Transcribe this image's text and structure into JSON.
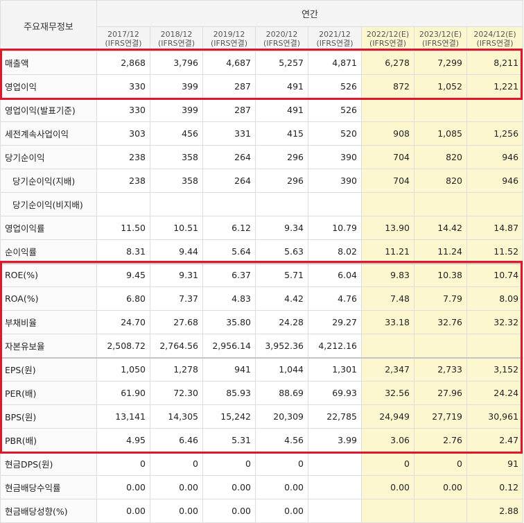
{
  "header": {
    "corner_label": "주요재무정보",
    "period_group": "연간",
    "columns": [
      {
        "year": "2017/12",
        "basis": "(IFRS연결)",
        "estimate": false
      },
      {
        "year": "2018/12",
        "basis": "(IFRS연결)",
        "estimate": false
      },
      {
        "year": "2019/12",
        "basis": "(IFRS연결)",
        "estimate": false
      },
      {
        "year": "2020/12",
        "basis": "(IFRS연결)",
        "estimate": false
      },
      {
        "year": "2021/12",
        "basis": "(IFRS연결)",
        "estimate": false
      },
      {
        "year": "2022/12(E)",
        "basis": "(IFRS연결)",
        "estimate": true
      },
      {
        "year": "2023/12(E)",
        "basis": "(IFRS연결)",
        "estimate": true
      },
      {
        "year": "2024/12(E)",
        "basis": "(IFRS연결)",
        "estimate": true
      }
    ]
  },
  "rows": [
    {
      "label": "매출액",
      "indent": false,
      "values": [
        "2,868",
        "3,796",
        "4,687",
        "5,257",
        "4,871",
        "6,278",
        "7,299",
        "8,211"
      ]
    },
    {
      "label": "영업이익",
      "indent": false,
      "values": [
        "330",
        "399",
        "287",
        "491",
        "526",
        "872",
        "1,052",
        "1,221"
      ]
    },
    {
      "label": "영업이익(발표기준)",
      "indent": false,
      "values": [
        "330",
        "399",
        "287",
        "491",
        "526",
        "",
        "",
        ""
      ]
    },
    {
      "label": "세전계속사업이익",
      "indent": false,
      "values": [
        "303",
        "456",
        "331",
        "415",
        "520",
        "908",
        "1,085",
        "1,256"
      ]
    },
    {
      "label": "당기순이익",
      "indent": false,
      "values": [
        "238",
        "358",
        "264",
        "296",
        "390",
        "704",
        "820",
        "946"
      ]
    },
    {
      "label": "당기순이익(지배)",
      "indent": true,
      "values": [
        "238",
        "358",
        "264",
        "296",
        "390",
        "704",
        "820",
        "946"
      ]
    },
    {
      "label": "당기순이익(비지배)",
      "indent": true,
      "values": [
        "",
        "",
        "",
        "",
        "",
        "",
        "",
        ""
      ]
    },
    {
      "label": "영업이익률",
      "indent": false,
      "values": [
        "11.50",
        "10.51",
        "6.12",
        "9.34",
        "10.79",
        "13.90",
        "14.42",
        "14.87"
      ]
    },
    {
      "label": "순이익률",
      "indent": false,
      "values": [
        "8.31",
        "9.44",
        "5.64",
        "5.63",
        "8.02",
        "11.21",
        "11.24",
        "11.52"
      ]
    },
    {
      "label": "ROE(%)",
      "indent": false,
      "values": [
        "9.45",
        "9.31",
        "6.37",
        "5.71",
        "6.04",
        "9.83",
        "10.38",
        "10.74"
      ]
    },
    {
      "label": "ROA(%)",
      "indent": false,
      "values": [
        "6.80",
        "7.37",
        "4.83",
        "4.42",
        "4.76",
        "7.48",
        "7.79",
        "8.09"
      ]
    },
    {
      "label": "부채비율",
      "indent": false,
      "values": [
        "24.70",
        "27.68",
        "35.80",
        "24.28",
        "29.27",
        "33.18",
        "32.76",
        "32.32"
      ]
    },
    {
      "label": "자본유보율",
      "indent": false,
      "values": [
        "2,508.72",
        "2,764.56",
        "2,956.14",
        "3,952.36",
        "4,212.16",
        "",
        "",
        ""
      ]
    },
    {
      "label": "EPS(원)",
      "indent": false,
      "values": [
        "1,050",
        "1,278",
        "941",
        "1,044",
        "1,301",
        "2,347",
        "2,733",
        "3,152"
      ]
    },
    {
      "label": "PER(배)",
      "indent": false,
      "values": [
        "61.90",
        "72.30",
        "85.93",
        "88.69",
        "69.93",
        "32.56",
        "27.96",
        "24.24"
      ]
    },
    {
      "label": "BPS(원)",
      "indent": false,
      "values": [
        "13,141",
        "14,305",
        "15,242",
        "20,309",
        "22,785",
        "24,949",
        "27,719",
        "30,961"
      ]
    },
    {
      "label": "PBR(배)",
      "indent": false,
      "values": [
        "4.95",
        "6.46",
        "5.31",
        "4.56",
        "3.99",
        "3.06",
        "2.76",
        "2.47"
      ]
    },
    {
      "label": "현금DPS(원)",
      "indent": false,
      "values": [
        "0",
        "0",
        "0",
        "0",
        "",
        "0",
        "0",
        "91"
      ]
    },
    {
      "label": "현금배당수익률",
      "indent": false,
      "values": [
        "0.00",
        "0.00",
        "0.00",
        "0.00",
        "",
        "0.00",
        "0.00",
        "0.12"
      ]
    },
    {
      "label": "현금배당성향(%)",
      "indent": false,
      "values": [
        "0.00",
        "0.00",
        "0.00",
        "0.00",
        "",
        "",
        "",
        "2.88"
      ]
    }
  ],
  "colors": {
    "estimate_bg": "#fdf7d0",
    "highlight_border": "#e0162b"
  }
}
